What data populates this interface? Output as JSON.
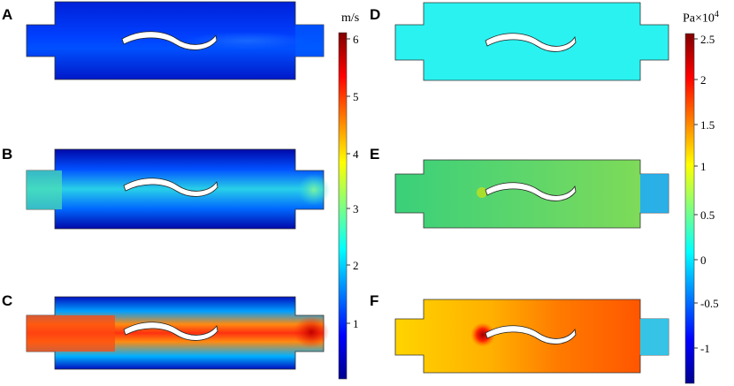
{
  "panels": [
    {
      "label": "A",
      "quantity": "velocity"
    },
    {
      "label": "B",
      "quantity": "velocity"
    },
    {
      "label": "C",
      "quantity": "velocity"
    },
    {
      "label": "D",
      "quantity": "pressure"
    },
    {
      "label": "E",
      "quantity": "pressure"
    },
    {
      "label": "F",
      "quantity": "pressure"
    }
  ],
  "velocity_colorbar": {
    "unit": "m/s",
    "ticks": [
      "6",
      "5",
      "4",
      "3",
      "2",
      "1"
    ]
  },
  "pressure_colorbar": {
    "unit": "Pa×10",
    "exponent": "4",
    "ticks": [
      "2.5",
      "2",
      "1.5",
      "1",
      "0.5",
      "0",
      "-0.5",
      "-1"
    ]
  },
  "colors": {
    "jet_dark_blue": "#00008f",
    "jet_blue": "#0000ff",
    "jet_cyan": "#00ffff",
    "jet_yellow": "#ffff00",
    "jet_red": "#ff0000",
    "jet_dark_red": "#800000"
  }
}
